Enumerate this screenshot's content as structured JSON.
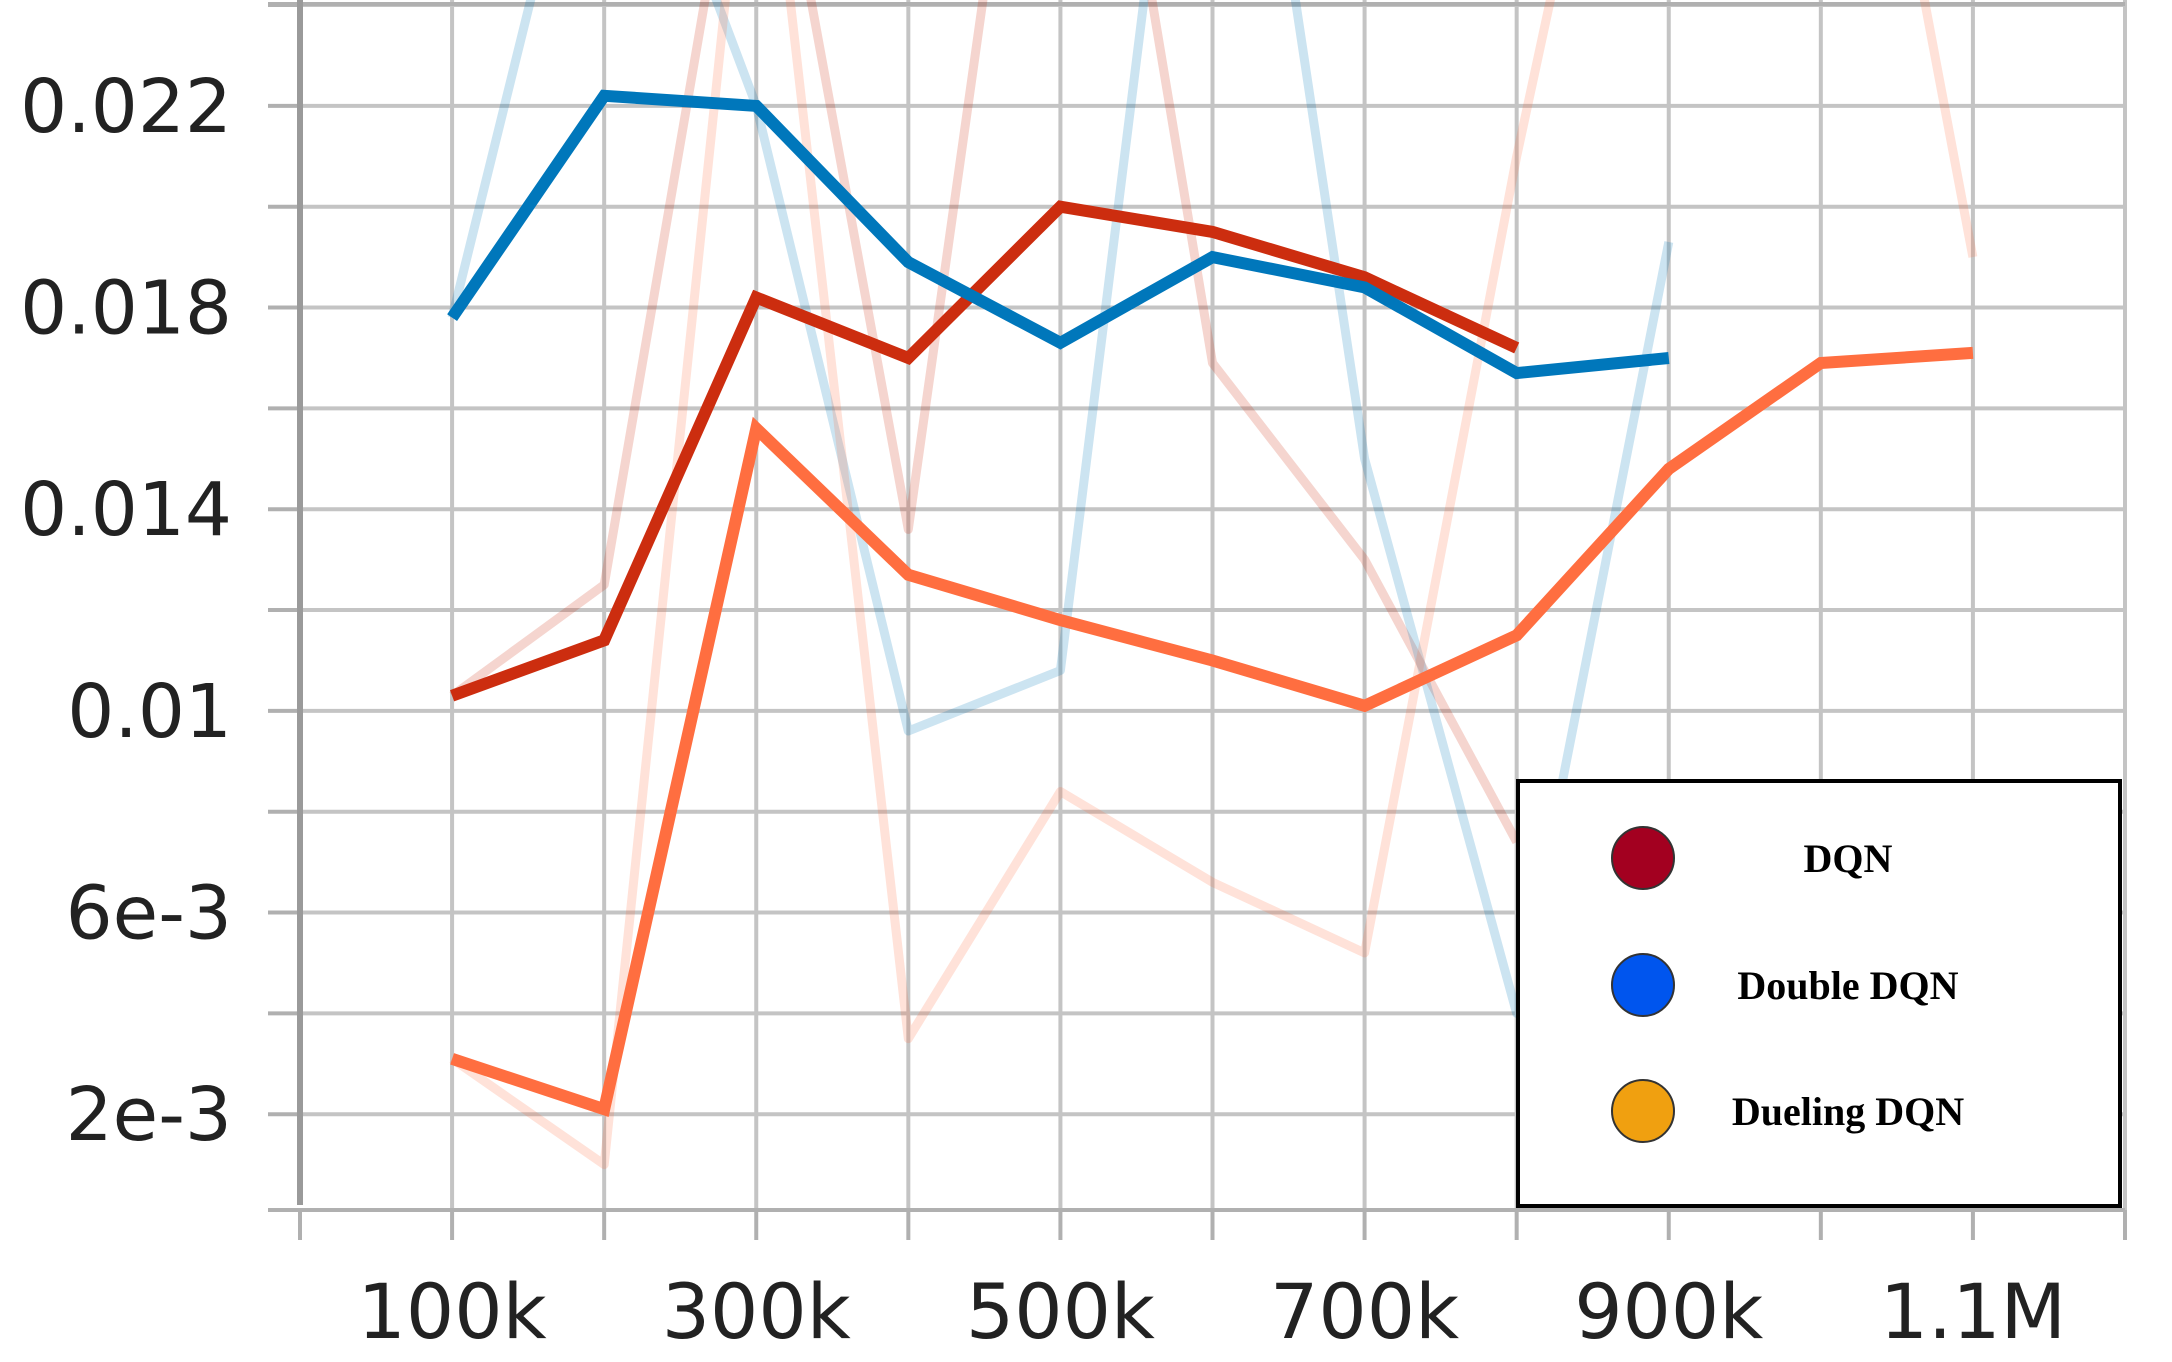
{
  "chart_data": {
    "type": "line",
    "x_ticks": [
      {
        "value": 100000,
        "label": "100k"
      },
      {
        "value": 300000,
        "label": "300k"
      },
      {
        "value": 500000,
        "label": "500k"
      },
      {
        "value": 700000,
        "label": "700k"
      },
      {
        "value": 900000,
        "label": "900k"
      },
      {
        "value": 1100000,
        "label": "1.1M"
      }
    ],
    "y_ticks": [
      {
        "value": 0.002,
        "label": "2e-3"
      },
      {
        "value": 0.006,
        "label": "6e-3"
      },
      {
        "value": 0.01,
        "label": "0.01"
      },
      {
        "value": 0.014,
        "label": "0.014"
      },
      {
        "value": 0.018,
        "label": "0.018"
      },
      {
        "value": 0.022,
        "label": "0.022"
      }
    ],
    "xlim": [
      0,
      1200000
    ],
    "ylim": [
      0.0001,
      0.0241
    ],
    "grid": true,
    "legend_position": "bottom-right",
    "series": [
      {
        "name": "DQN",
        "legend_color": "#a30020",
        "color": "#cc2d0f",
        "x": [
          100000,
          200000,
          300000,
          400000,
          500000,
          600000,
          700000,
          800000
        ],
        "y": [
          0.0103,
          0.0114,
          0.0182,
          0.017,
          0.02,
          0.0195,
          0.0186,
          0.0172
        ],
        "raw_y": [
          0.0103,
          0.0125,
          0.03,
          0.0136,
          0.035,
          0.0169,
          0.013,
          0.0074
        ]
      },
      {
        "name": "Double DQN",
        "legend_color": "#0055ee",
        "color": "#0077bb",
        "x": [
          100000,
          200000,
          300000,
          400000,
          500000,
          600000,
          700000,
          800000,
          900000
        ],
        "y": [
          0.0178,
          0.0222,
          0.022,
          0.0189,
          0.0173,
          0.019,
          0.0184,
          0.0167,
          0.017
        ],
        "raw_y": [
          0.0178,
          0.03,
          0.022,
          0.0096,
          0.0108,
          0.035,
          0.015,
          0.004,
          0.0193
        ]
      },
      {
        "name": "Dueling DQN",
        "legend_color": "#f0a010",
        "color": "#ff6e40",
        "x": [
          100000,
          200000,
          300000,
          400000,
          500000,
          600000,
          700000,
          800000,
          900000,
          1000000,
          1100000
        ],
        "y": [
          0.0031,
          0.0021,
          0.0156,
          0.0127,
          0.0118,
          0.011,
          0.0101,
          0.0115,
          0.0148,
          0.0169,
          0.0171
        ],
        "raw_y": [
          0.0031,
          0.001,
          0.03,
          0.0035,
          0.0084,
          0.0066,
          0.0052,
          0.021,
          0.035,
          0.035,
          0.019
        ]
      }
    ]
  }
}
